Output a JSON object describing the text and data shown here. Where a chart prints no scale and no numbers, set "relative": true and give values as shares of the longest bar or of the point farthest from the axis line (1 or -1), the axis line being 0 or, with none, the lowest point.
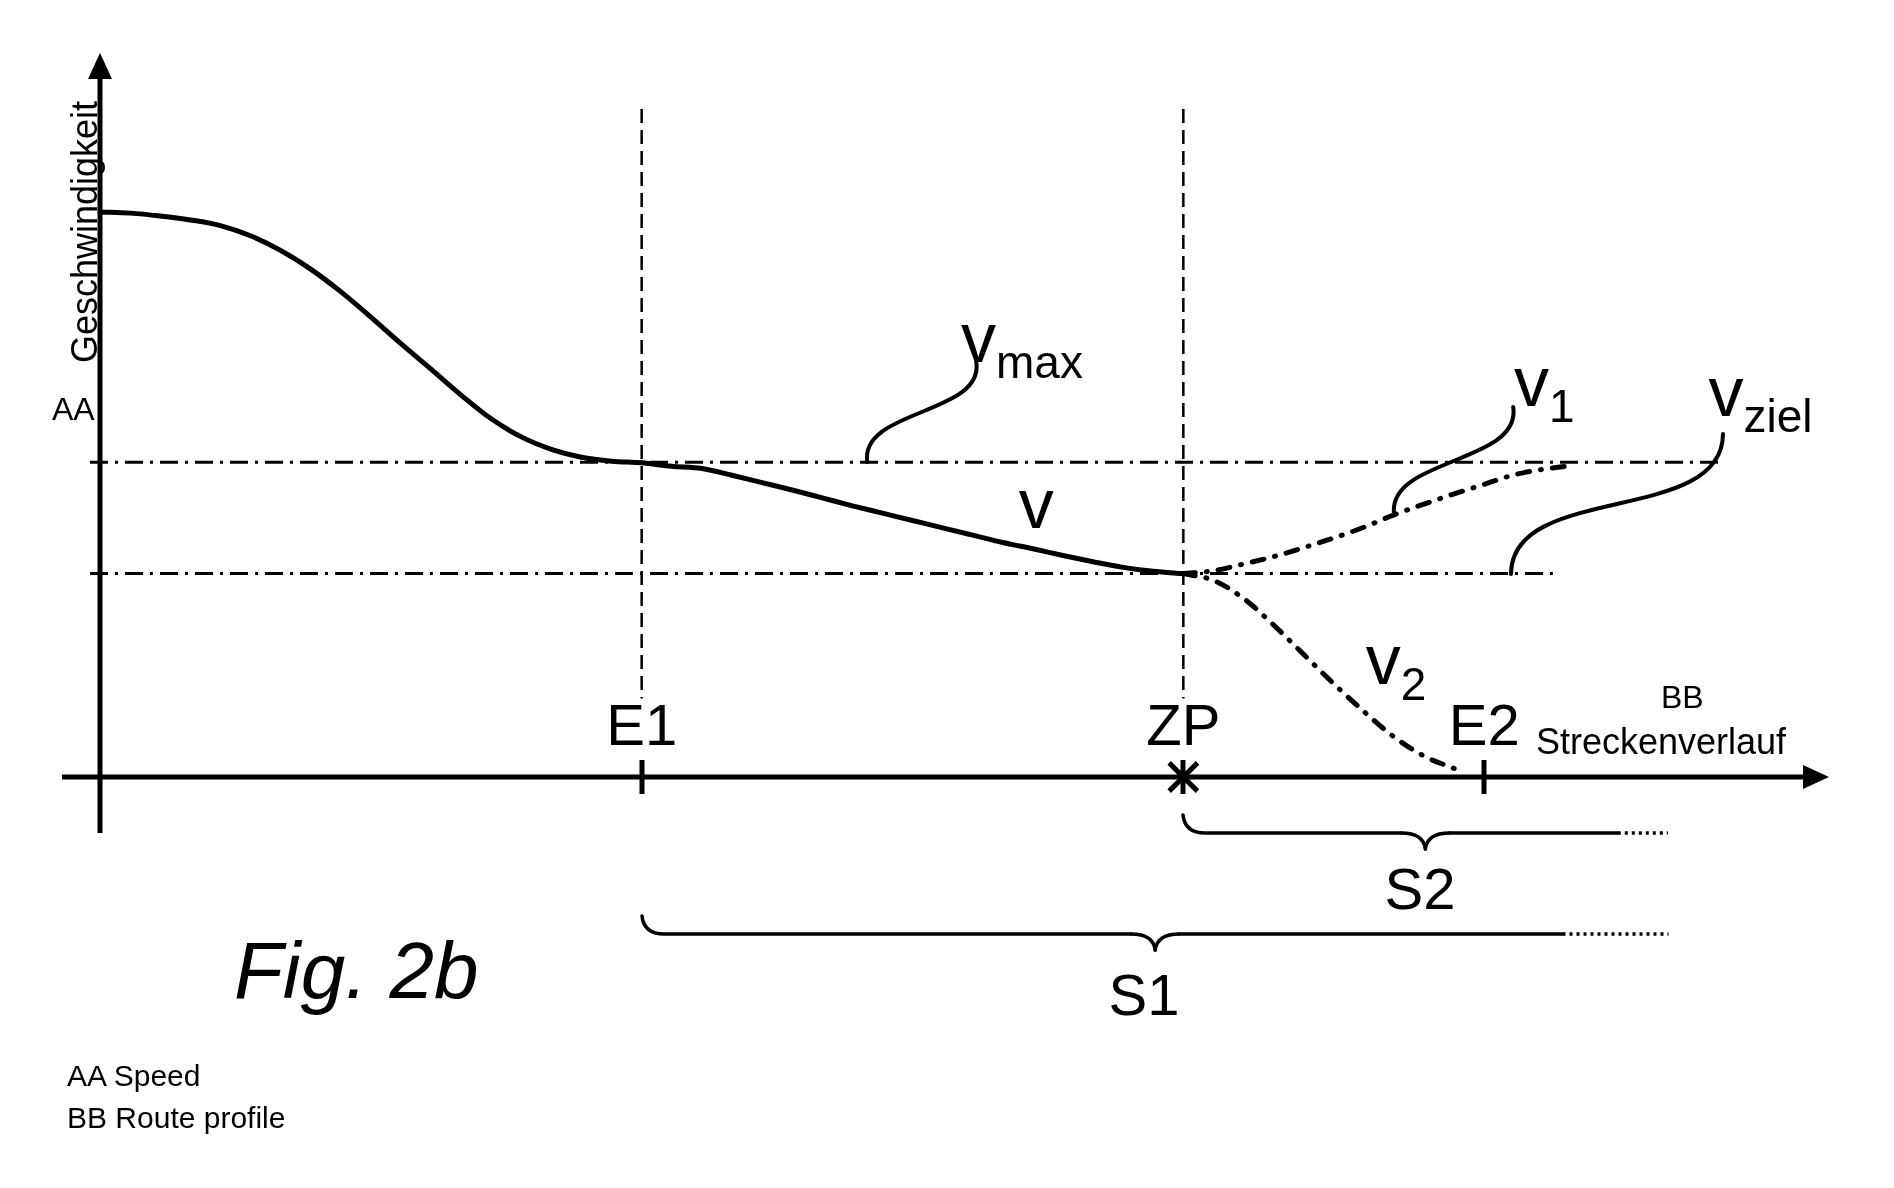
{
  "chart_data": {
    "type": "line",
    "relative": true,
    "categories": [
      null,
      null,
      null,
      null,
      null,
      null,
      null,
      null,
      null,
      null,
      null,
      null,
      null,
      null,
      null,
      null,
      null,
      null,
      "E1",
      null,
      null,
      null,
      null,
      null,
      null,
      null,
      null,
      null,
      null,
      null,
      null,
      null,
      null,
      null,
      null,
      null,
      "ZP",
      null,
      null,
      null,
      null,
      null,
      null,
      null,
      null,
      null,
      "E2",
      null,
      null,
      null,
      null,
      null,
      null,
      null,
      null
    ],
    "xlabel": "Streckenverlauf",
    "ylabel": "Geschwindigkeit",
    "marker": "none",
    "series": [
      {
        "name": "v",
        "color": "#000000",
        "line_style": "solid",
        "values": [
          1.0,
          0.998,
          0.993,
          0.986,
          0.976,
          0.958,
          0.932,
          0.899,
          0.859,
          0.814,
          0.767,
          0.722,
          0.676,
          0.634,
          0.602,
          0.58,
          0.566,
          0.559,
          0.556,
          0.55,
          0.546,
          0.534,
          0.521,
          0.508,
          0.494,
          0.48,
          0.467,
          0.454,
          0.441,
          0.428,
          0.415,
          0.404,
          0.392,
          0.381,
          0.371,
          0.364,
          0.36,
          null,
          null,
          null,
          null,
          null,
          null,
          null,
          null,
          null,
          null,
          null,
          null,
          null,
          null,
          null,
          null,
          null,
          null
        ]
      },
      {
        "name": "v$_{1}$",
        "color": "#000000",
        "line_style": "dashed",
        "values": [
          null,
          null,
          null,
          null,
          null,
          null,
          null,
          null,
          null,
          null,
          null,
          null,
          null,
          null,
          null,
          null,
          null,
          null,
          null,
          null,
          null,
          null,
          null,
          null,
          null,
          null,
          null,
          null,
          null,
          null,
          null,
          null,
          null,
          null,
          null,
          null,
          0.36,
          0.365,
          0.377,
          0.39,
          0.406,
          0.423,
          0.442,
          0.464,
          0.483,
          0.501,
          0.518,
          0.535,
          0.545,
          0.552,
          null,
          null,
          null,
          null,
          null
        ]
      },
      {
        "name": "v$_{2}$",
        "color": "#000000",
        "line_style": "dashed",
        "values": [
          null,
          null,
          null,
          null,
          null,
          null,
          null,
          null,
          null,
          null,
          null,
          null,
          null,
          null,
          null,
          null,
          null,
          null,
          null,
          null,
          null,
          null,
          null,
          null,
          null,
          null,
          null,
          null,
          null,
          null,
          null,
          null,
          null,
          null,
          null,
          null,
          0.36,
          0.348,
          0.316,
          0.269,
          0.217,
          0.165,
          0.116,
          0.071,
          0.037,
          0.015,
          null,
          null,
          null,
          null,
          null,
          null,
          null,
          null,
          null
        ]
      },
      {
        "type": "scatter",
        "color": "#000000",
        "marker": "cross",
        "x": [
          "ZP"
        ],
        "values": [
          0
        ]
      }
    ],
    "ref_lines": [
      {
        "axis": "y",
        "value": 0.557,
        "label": "v$_{max}$",
        "line_style": "dashed"
      },
      {
        "axis": "y",
        "value": 0.36,
        "label": "v$_{ziel}$",
        "line_style": "dashed"
      },
      {
        "axis": "x",
        "value": "E1",
        "line_style": "dashed"
      },
      {
        "axis": "x",
        "value": "ZP",
        "line_style": "dashed"
      }
    ],
    "annotations": [
      "S1",
      "S2",
      "AA",
      "BB",
      "Fig. 2b",
      "AA Speed",
      "BB Route profile"
    ]
  }
}
